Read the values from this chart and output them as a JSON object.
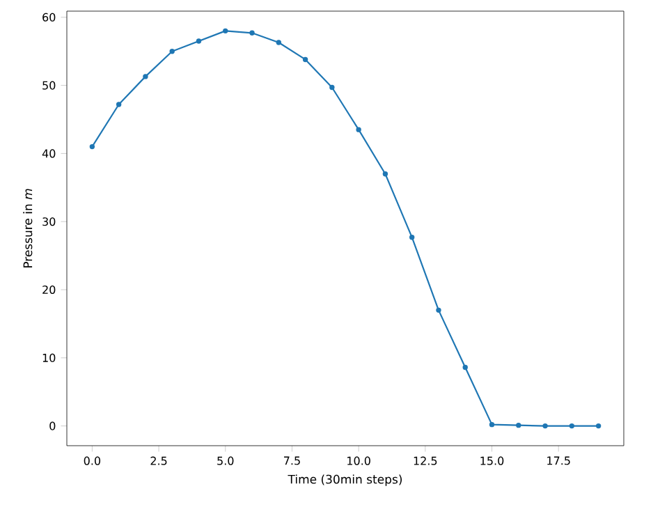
{
  "chart_data": {
    "type": "line",
    "xlabel": "Time (30min steps)",
    "ylabel": "Pressure in *m*",
    "x": [
      0,
      1,
      2,
      3,
      4,
      5,
      6,
      7,
      8,
      9,
      10,
      11,
      12,
      13,
      14,
      15,
      16,
      17,
      18,
      19
    ],
    "series": [
      {
        "color": "#1f77b4",
        "values": [
          41.0,
          47.2,
          51.3,
          55.0,
          56.5,
          58.0,
          57.7,
          56.3,
          53.8,
          49.7,
          43.5,
          37.0,
          27.7,
          17.0,
          8.6,
          0.2,
          0.1,
          0.0,
          0.0,
          0.0
        ]
      }
    ],
    "xlim": [
      -0.95,
      19.95
    ],
    "ylim": [
      -2.9,
      60.9
    ],
    "xticks": [
      {
        "value": 0,
        "label": "0.0"
      },
      {
        "value": 2.5,
        "label": "2.5"
      },
      {
        "value": 5,
        "label": "5.0"
      },
      {
        "value": 7.5,
        "label": "7.5"
      },
      {
        "value": 10,
        "label": "10.0"
      },
      {
        "value": 12.5,
        "label": "12.5"
      },
      {
        "value": 15,
        "label": "15.0"
      },
      {
        "value": 17.5,
        "label": "17.5"
      }
    ],
    "yticks": [
      0,
      10,
      20,
      30,
      40,
      50,
      60
    ],
    "marker": "circle",
    "line_style": "solid"
  }
}
